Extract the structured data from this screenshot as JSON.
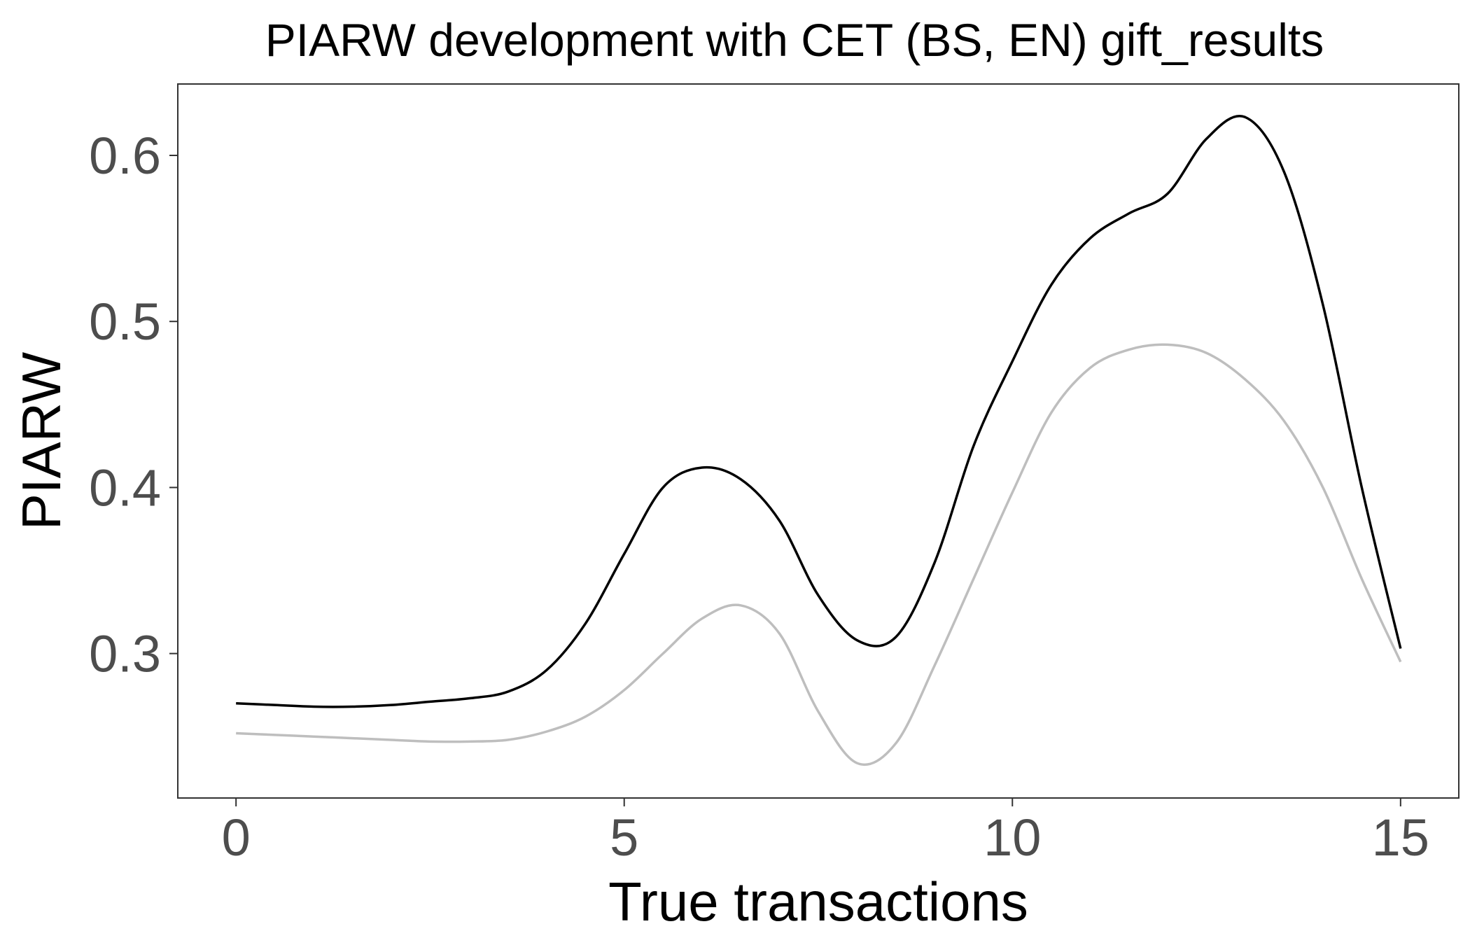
{
  "chart_data": {
    "type": "line",
    "title": "PIARW development with CET (BS, EN) gift_results",
    "xlabel": "True transactions",
    "ylabel": "PIARW",
    "xlim": [
      -0.75,
      15.75
    ],
    "ylim": [
      0.213,
      0.643
    ],
    "x_ticks": [
      0,
      5,
      10,
      15
    ],
    "x_tick_labels": [
      "0",
      "5",
      "10",
      "15"
    ],
    "y_ticks": [
      0.3,
      0.4,
      0.5,
      0.6
    ],
    "y_tick_labels": [
      "0.3",
      "0.4",
      "0.5",
      "0.6"
    ],
    "grid": false,
    "series": [
      {
        "color": "#000000",
        "x": [
          0,
          0.5,
          1,
          1.5,
          2,
          2.5,
          3,
          3.5,
          4,
          4.5,
          5,
          5.5,
          6,
          6.5,
          7,
          7.5,
          8,
          8.5,
          9,
          9.5,
          10,
          10.5,
          11,
          11.5,
          12,
          12.5,
          13,
          13.5,
          14,
          14.5,
          15
        ],
        "values": [
          0.27,
          0.269,
          0.268,
          0.268,
          0.269,
          0.271,
          0.273,
          0.277,
          0.29,
          0.318,
          0.36,
          0.4,
          0.412,
          0.405,
          0.38,
          0.335,
          0.308,
          0.31,
          0.355,
          0.425,
          0.476,
          0.522,
          0.55,
          0.565,
          0.577,
          0.61,
          0.623,
          0.59,
          0.51,
          0.4,
          0.303
        ]
      },
      {
        "color": "#bebebe",
        "x": [
          0,
          0.5,
          1,
          1.5,
          2,
          2.5,
          3,
          3.5,
          4,
          4.5,
          5,
          5.5,
          6,
          6.5,
          7,
          7.5,
          8,
          8.5,
          9,
          9.5,
          10,
          10.5,
          11,
          11.5,
          12,
          12.5,
          13,
          13.5,
          14,
          14.5,
          15
        ],
        "values": [
          0.252,
          0.251,
          0.25,
          0.249,
          0.248,
          0.247,
          0.247,
          0.248,
          0.253,
          0.262,
          0.278,
          0.3,
          0.321,
          0.329,
          0.312,
          0.265,
          0.234,
          0.246,
          0.293,
          0.345,
          0.397,
          0.445,
          0.472,
          0.483,
          0.486,
          0.481,
          0.465,
          0.44,
          0.4,
          0.345,
          0.295
        ]
      }
    ]
  }
}
